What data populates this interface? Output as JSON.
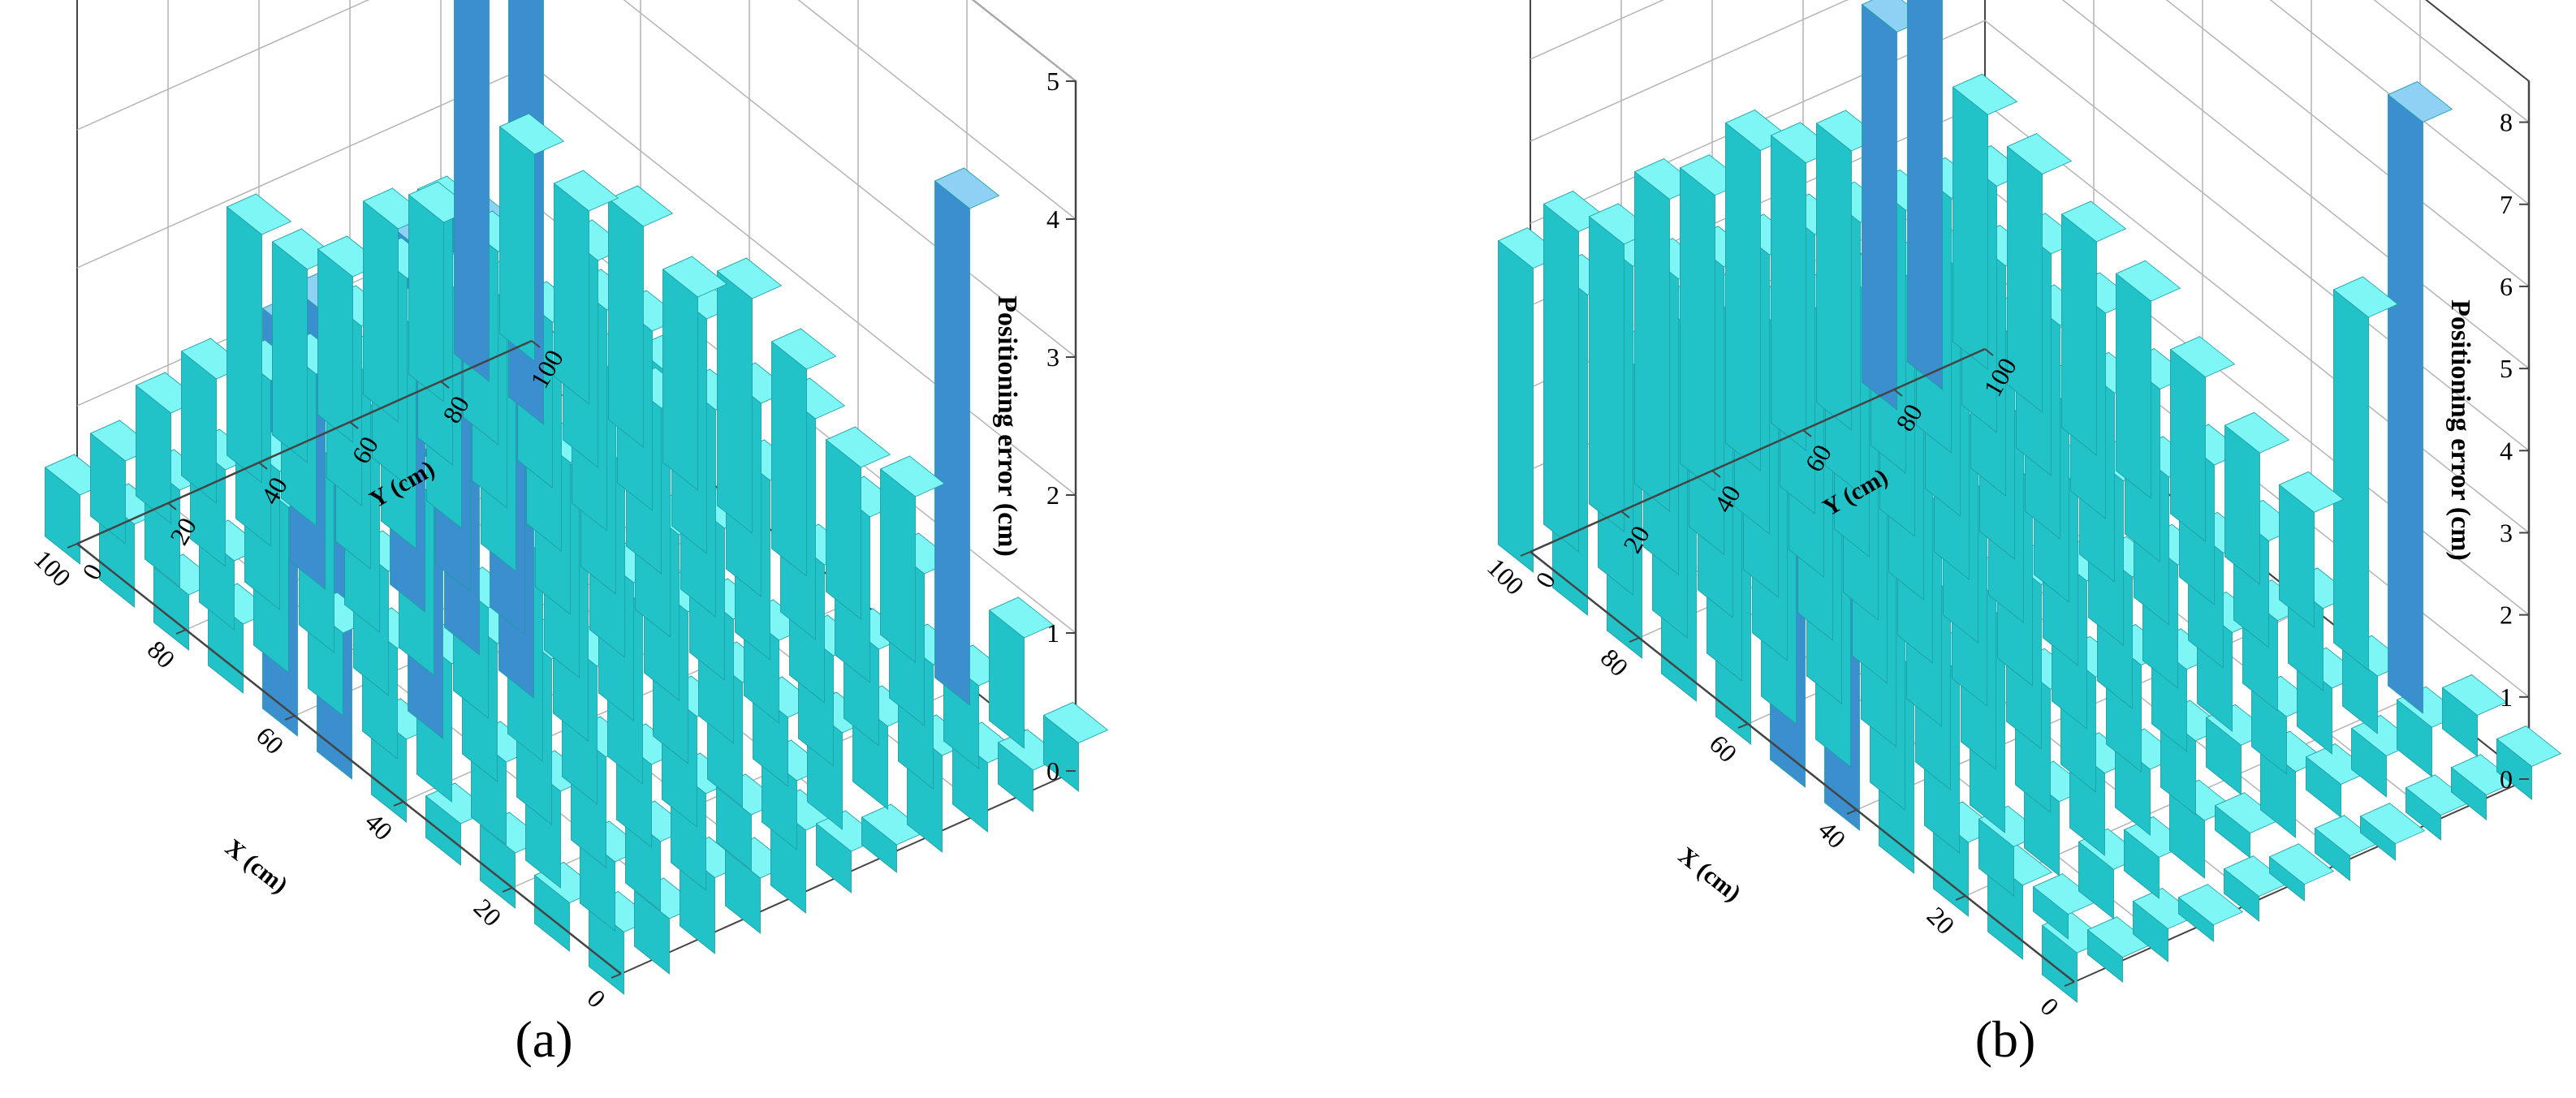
{
  "colors": {
    "bar_normal_top": "#7ef6f6",
    "bar_normal_left": "#38e6ea",
    "bar_normal_right": "#22c3c8",
    "bar_tall_top": "#8fd0f5",
    "bar_tall_left": "#55b3ef",
    "bar_tall_right": "#3b8fcf",
    "grid": "#b4b4b4",
    "frame": "#444444"
  },
  "chart_data": [
    {
      "type": "bar3d",
      "caption": "(a)",
      "xlabel": "X (cm)",
      "ylabel": "Y (cm)",
      "zlabel": "Positioning error (cm)",
      "xlim": [
        0,
        100
      ],
      "ylim": [
        0,
        100
      ],
      "zlim": [
        0,
        5
      ],
      "xticks": [
        "0",
        "20",
        "40",
        "60",
        "80",
        "100"
      ],
      "yticks": [
        "0",
        "20",
        "40",
        "60",
        "80",
        "100"
      ],
      "zticks": [
        "0",
        "1",
        "2",
        "3",
        "4",
        "5"
      ],
      "tall_threshold": 2.0,
      "x": [
        0,
        10,
        20,
        30,
        40,
        50,
        60,
        70,
        80,
        90,
        100
      ],
      "y": [
        0,
        10,
        20,
        30,
        40,
        50,
        60,
        70,
        80,
        90,
        100
      ],
      "values": [
        [
          0.45,
          0.35,
          0.4,
          0.3,
          0.6,
          2.2,
          2.9,
          0.5,
          0.4,
          0.6,
          0.5
        ],
        [
          0.4,
          0.5,
          0.7,
          0.6,
          1.0,
          0.8,
          0.6,
          1.2,
          0.5,
          0.7,
          0.6
        ],
        [
          0.55,
          0.5,
          0.8,
          1.2,
          1.0,
          2.0,
          0.9,
          1.4,
          1.0,
          0.7,
          0.8
        ],
        [
          0.4,
          0.7,
          0.6,
          1.0,
          1.5,
          0.8,
          1.3,
          1.6,
          2.0,
          1.2,
          0.9
        ],
        [
          0.6,
          0.4,
          0.8,
          1.3,
          1.9,
          2.1,
          3.1,
          2.6,
          1.4,
          1.1,
          1.8
        ],
        [
          0.3,
          0.5,
          0.9,
          1.1,
          1.0,
          1.5,
          2.1,
          2.2,
          1.6,
          1.3,
          1.4
        ],
        [
          0.2,
          0.7,
          0.5,
          0.9,
          1.2,
          1.4,
          1.1,
          1.8,
          1.7,
          1.5,
          1.2
        ],
        [
          0.7,
          0.6,
          0.8,
          0.6,
          1.1,
          1.9,
          1.6,
          1.3,
          1.5,
          1.8,
          1.4
        ],
        [
          0.5,
          0.9,
          0.7,
          1.0,
          1.3,
          1.5,
          1.2,
          1.6,
          1.2,
          1.4,
          1.3
        ],
        [
          0.3,
          0.6,
          1.1,
          1.2,
          1.6,
          1.4,
          1.7,
          1.3,
          1.5,
          3.9,
          2.8
        ],
        [
          0.35,
          0.8,
          3.6,
          1.2,
          1.1,
          1.5,
          1.7,
          1.4,
          1.6,
          1.4,
          1.5
        ]
      ]
    },
    {
      "type": "bar3d",
      "caption": "(b)",
      "xlabel": "X (cm)",
      "ylabel": "Y (cm)",
      "zlabel": "Positioning error (cm)",
      "xlim": [
        0,
        100
      ],
      "ylim": [
        0,
        100
      ],
      "zlim": [
        0,
        8.5
      ],
      "xticks": [
        "0",
        "20",
        "40",
        "60",
        "80",
        "100"
      ],
      "yticks": [
        "0",
        "20",
        "40",
        "60",
        "80",
        "100"
      ],
      "zticks": [
        "0",
        "1",
        "2",
        "3",
        "4",
        "5",
        "6",
        "7",
        "8"
      ],
      "tall_threshold": 4.5,
      "x": [
        0,
        10,
        20,
        30,
        40,
        50,
        60,
        70,
        80,
        90,
        100
      ],
      "y": [
        0,
        10,
        20,
        30,
        40,
        50,
        60,
        70,
        80,
        90,
        100
      ],
      "values": [
        [
          0.6,
          0.9,
          0.9,
          2.5,
          6.6,
          5.0,
          2.8,
          3.4,
          3.5,
          3.9,
          3.7
        ],
        [
          0.3,
          0.3,
          0.6,
          2.2,
          3.0,
          2.9,
          3.3,
          3.6,
          3.8,
          4.0,
          3.9
        ],
        [
          0.4,
          0.6,
          0.9,
          2.6,
          2.4,
          3.0,
          2.8,
          3.4,
          3.7,
          3.6,
          3.5
        ],
        [
          0.2,
          0.5,
          1.0,
          1.5,
          2.1,
          2.7,
          3.2,
          2.9,
          3.3,
          3.5,
          3.8
        ],
        [
          0.3,
          0.7,
          0.8,
          1.4,
          2.0,
          2.6,
          2.9,
          3.1,
          3.2,
          3.4,
          3.6
        ],
        [
          0.2,
          0.3,
          0.9,
          1.3,
          1.8,
          2.5,
          2.7,
          3.0,
          3.2,
          3.4,
          3.9
        ],
        [
          0.3,
          0.8,
          0.6,
          1.0,
          1.6,
          2.2,
          2.5,
          2.9,
          3.1,
          3.3,
          3.5
        ],
        [
          0.2,
          0.4,
          0.7,
          1.2,
          1.5,
          2.0,
          2.4,
          2.7,
          3.0,
          3.2,
          3.4
        ],
        [
          0.3,
          0.5,
          0.8,
          1.1,
          1.4,
          1.8,
          2.3,
          2.6,
          2.8,
          3.1,
          4.6
        ],
        [
          0.3,
          0.6,
          0.7,
          1.0,
          1.3,
          1.7,
          2.1,
          2.5,
          2.7,
          3.0,
          4.8
        ],
        [
          0.4,
          0.5,
          7.2,
          4.3,
          1.4,
          1.6,
          2.0,
          2.4,
          2.6,
          2.9,
          3.1
        ]
      ]
    }
  ]
}
